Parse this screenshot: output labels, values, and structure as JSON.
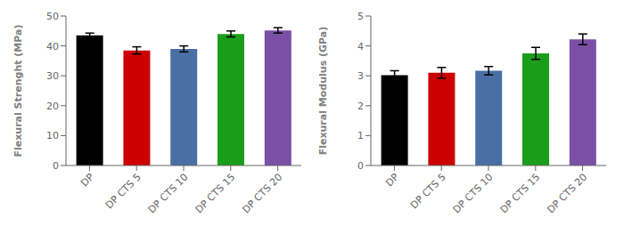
{
  "chart_data": [
    {
      "type": "bar",
      "categories": [
        "DP",
        "DP CTS 5",
        "DP CTS 10",
        "DP CTS 15",
        "DP CTS 20"
      ],
      "values": [
        43.5,
        38.5,
        39.0,
        44.0,
        45.2
      ],
      "errors": [
        0.8,
        1.2,
        1.0,
        1.0,
        0.9
      ],
      "colors": [
        "#000000",
        "#cc0000",
        "#4a6fa5",
        "#1a9e1a",
        "#7b4fa5"
      ],
      "ylabel": "Flexural Strenght (MPa)",
      "ylim": [
        0,
        50
      ],
      "yticks": [
        0,
        10,
        20,
        30,
        40,
        50
      ],
      "grid": false
    },
    {
      "type": "bar",
      "categories": [
        "DP",
        "DP CTS 5",
        "DP CTS 10",
        "DP CTS 15",
        "DP CTS 20"
      ],
      "values": [
        3.02,
        3.1,
        3.17,
        3.75,
        4.22
      ],
      "errors": [
        0.15,
        0.18,
        0.14,
        0.2,
        0.18
      ],
      "colors": [
        "#000000",
        "#cc0000",
        "#4a6fa5",
        "#1a9e1a",
        "#7b4fa5"
      ],
      "ylabel": "Flexural Modulus (GPa)",
      "ylim": [
        0,
        5
      ],
      "yticks": [
        0,
        1,
        2,
        3,
        4,
        5
      ],
      "grid": false
    }
  ]
}
